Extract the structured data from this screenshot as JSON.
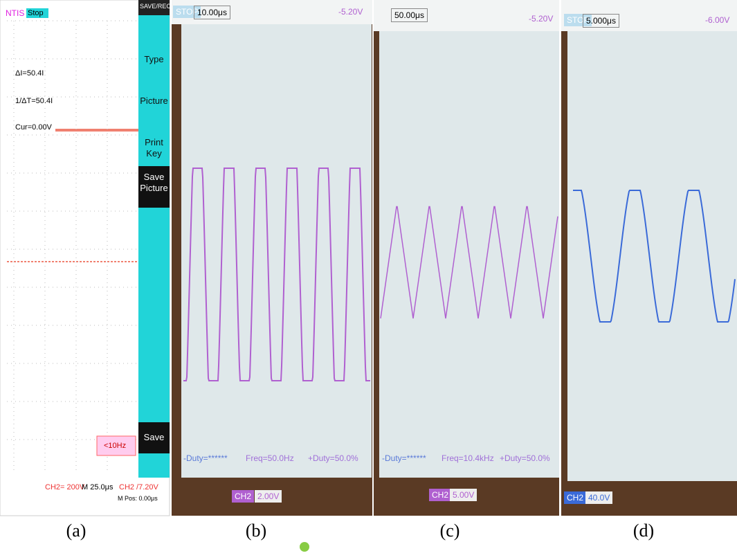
{
  "panel_a": {
    "caption": "(a)",
    "brand": "NTIS",
    "status": "Stop",
    "menu_title": "SAVE/REC",
    "menu": [
      "Type",
      "Picture",
      "Print Key",
      "Save Picture",
      "Save"
    ],
    "cursors": [
      "ΔI=50.4I",
      "1/ΔT=50.4I",
      "Cur=0.00V"
    ],
    "trigger_freq": "<10Hz",
    "footer": [
      "CH2= 200V",
      "M 25.0μs",
      "CH2 /7.20V",
      "M Pos: 0.00μs"
    ]
  },
  "panel_b": {
    "caption": "(b)",
    "status": "STOP",
    "timebase": "10.00μs",
    "trigger_level": "-5.20V",
    "measurements": [
      "-Duty=******",
      "Freq=50.0Hz",
      "+Duty=50.0%"
    ],
    "channel_label": "CH2",
    "scale": "2.00V"
  },
  "panel_c": {
    "caption": "(c)",
    "timebase": "50.00μs",
    "trigger_level": "-5.20V",
    "measurements": [
      "-Duty=******",
      "Freq=10.4kHz",
      "+Duty=50.0%"
    ],
    "channel_label": "CH2",
    "scale": "5.00V"
  },
  "panel_d": {
    "caption": "(d)",
    "status": "STOP",
    "timebase": "5.000μs",
    "trigger_level": "-6.00V",
    "channel_label": "CH2",
    "scale": "40.0V"
  }
}
